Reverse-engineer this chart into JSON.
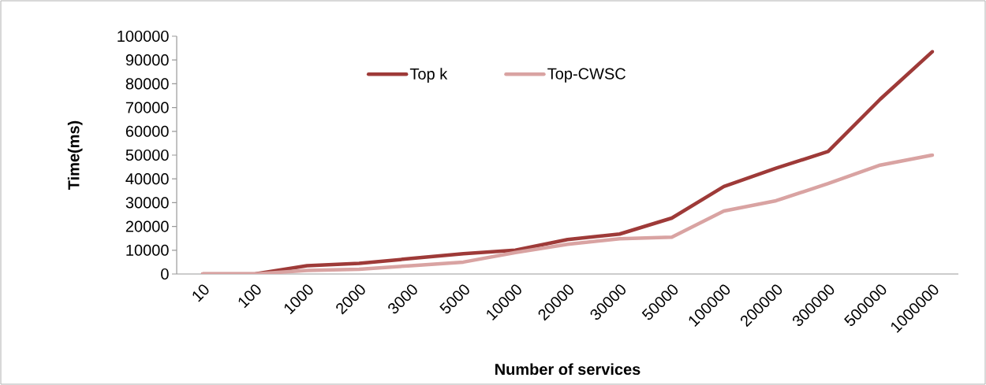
{
  "chart_data": {
    "type": "line",
    "xlabel": "Number of services",
    "ylabel": "Time(ms)",
    "categories": [
      "10",
      "100",
      "1000",
      "2000",
      "3000",
      "5000",
      "10000",
      "20000",
      "30000",
      "50000",
      "100000",
      "200000",
      "300000",
      "500000",
      "1000000"
    ],
    "series": [
      {
        "name": "Top k",
        "color": "#9e3a38",
        "values": [
          0,
          0,
          3500,
          4500,
          6500,
          8500,
          10000,
          14500,
          16800,
          23500,
          36800,
          44500,
          51500,
          73500,
          93500
        ]
      },
      {
        "name": "Top-CWSC",
        "color": "#d9a3a2",
        "values": [
          0,
          0,
          1500,
          2000,
          3500,
          5000,
          9000,
          12500,
          14800,
          15500,
          26500,
          30800,
          38000,
          45800,
          50000
        ]
      }
    ],
    "ylim": [
      0,
      100000
    ],
    "yticks": [
      0,
      10000,
      20000,
      30000,
      40000,
      50000,
      60000,
      70000,
      80000,
      90000,
      100000
    ],
    "grid": false,
    "legend": "top",
    "marker": "none",
    "line_style": "solid"
  }
}
